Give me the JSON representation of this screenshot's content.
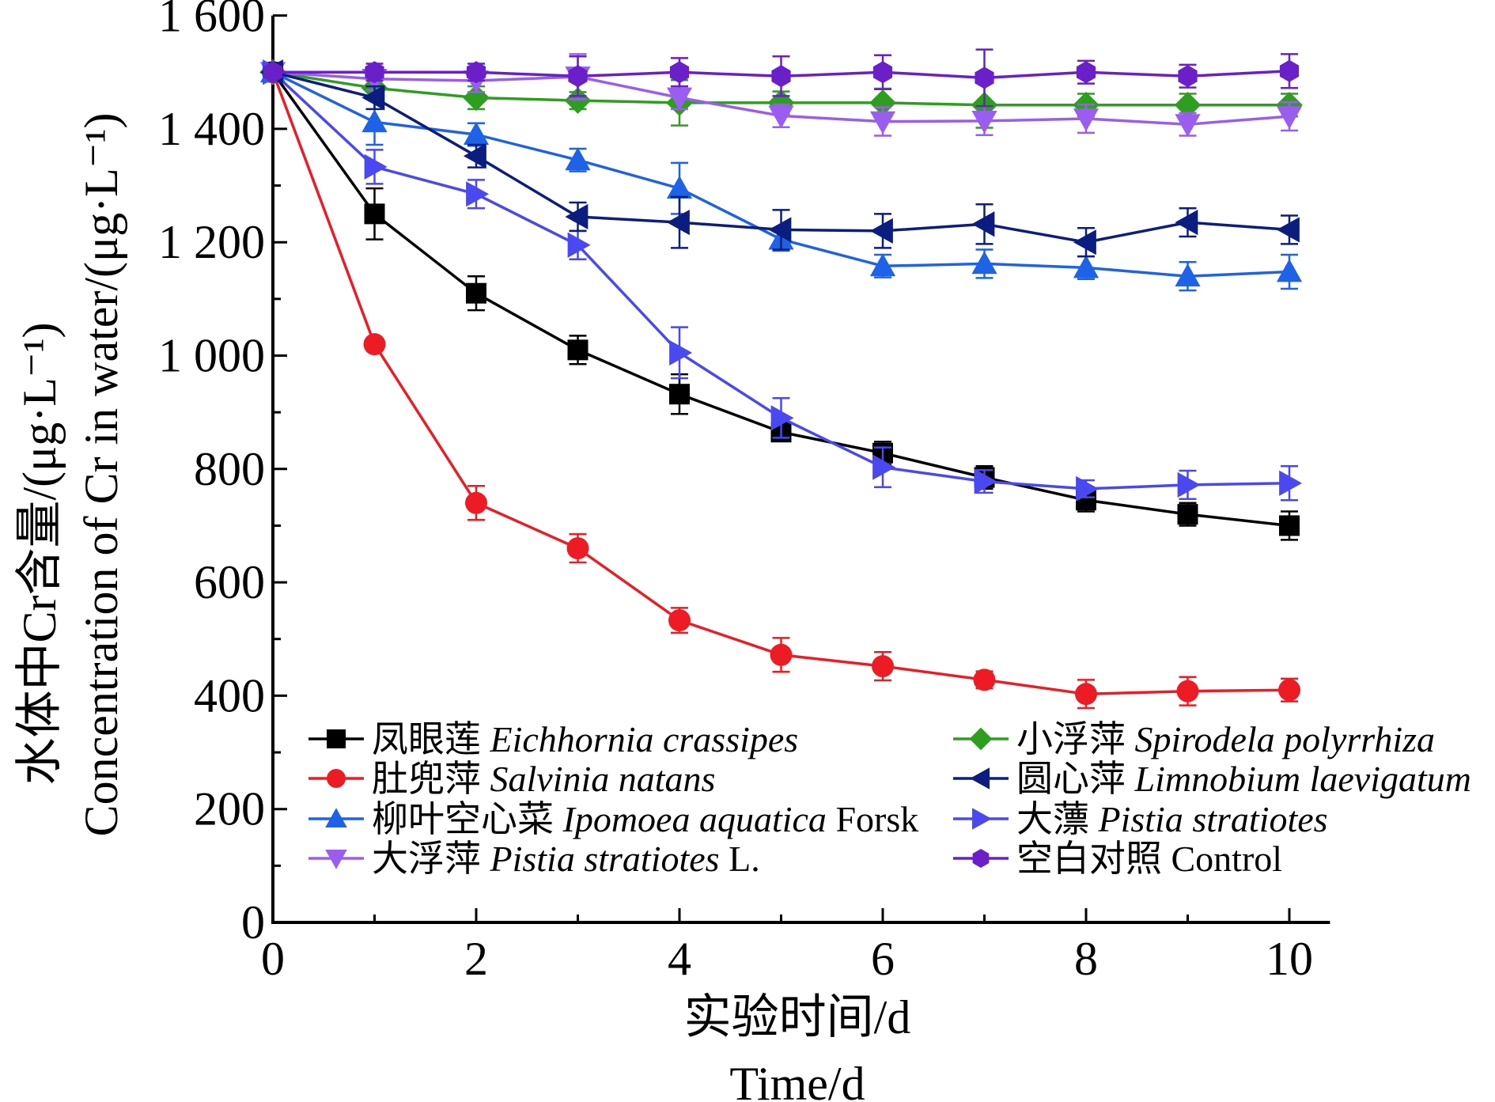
{
  "chart_data": {
    "type": "line",
    "xlabel": [
      "实验时间/d",
      "Time/d"
    ],
    "ylabel": [
      "水体中Cr含量/(μg·L⁻¹)",
      "Concentration of Cr in water/(μg·L⁻¹)"
    ],
    "xlim": [
      0,
      10.4
    ],
    "ylim": [
      0,
      1600
    ],
    "xticks": [
      0,
      2,
      4,
      6,
      8,
      10
    ],
    "xtick_labels": [
      "0",
      "2",
      "4",
      "6",
      "8",
      "10"
    ],
    "yticks": [
      0,
      200,
      400,
      600,
      800,
      1000,
      1200,
      1400,
      1600
    ],
    "ytick_labels": [
      "0",
      "200",
      "400",
      "600",
      "800",
      "1 000",
      "1 200",
      "1 400",
      "1 600"
    ],
    "grid": false,
    "legend_position": "bottom",
    "x": [
      0,
      1,
      2,
      3,
      4,
      5,
      6,
      7,
      8,
      9,
      10
    ],
    "series": [
      {
        "zh": "凤眼莲",
        "latin": "Eichhornia crassipes",
        "suffix": "",
        "color": "#000000",
        "marker": "square",
        "values": [
          1500,
          1250,
          1110,
          1010,
          932,
          865,
          828,
          785,
          745,
          720,
          700
        ],
        "errors": [
          0,
          45,
          30,
          25,
          35,
          15,
          20,
          20,
          20,
          20,
          25
        ]
      },
      {
        "zh": "肚兜萍",
        "latin": "Salvinia natans",
        "suffix": "",
        "color": "#ed1c24",
        "marker": "circle",
        "values": [
          1500,
          1020,
          740,
          660,
          533,
          472,
          452,
          428,
          403,
          408,
          410
        ],
        "errors": [
          0,
          0,
          30,
          25,
          22,
          30,
          25,
          15,
          25,
          25,
          20
        ]
      },
      {
        "zh": "柳叶空心菜",
        "latin": "Ipomoea aquatica",
        "suffix": " Forsk",
        "color": "#1e62e8",
        "marker": "triangle-up",
        "values": [
          1500,
          1412,
          1390,
          1345,
          1295,
          1205,
          1158,
          1162,
          1155,
          1140,
          1148
        ],
        "errors": [
          0,
          40,
          20,
          20,
          45,
          20,
          20,
          25,
          20,
          25,
          30
        ]
      },
      {
        "zh": "大浮萍",
        "latin": "Pistia stratiotes",
        "suffix": " L.",
        "color": "#9b5cf0",
        "marker": "triangle-down",
        "values": [
          1500,
          1488,
          1485,
          1492,
          1455,
          1423,
          1413,
          1414,
          1418,
          1408,
          1422
        ],
        "errors": [
          0,
          20,
          20,
          40,
          20,
          20,
          25,
          25,
          25,
          20,
          25
        ]
      },
      {
        "zh": "小浮萍",
        "latin": "Spirodela polyrrhiza",
        "suffix": "",
        "color": "#2e9e1f",
        "marker": "diamond",
        "values": [
          1500,
          1472,
          1455,
          1450,
          1446,
          1446,
          1446,
          1442,
          1442,
          1442,
          1442
        ],
        "errors": [
          0,
          15,
          20,
          15,
          40,
          20,
          25,
          40,
          20,
          20,
          20
        ]
      },
      {
        "zh": "圆心萍",
        "latin": "Limnobium laevigatum",
        "suffix": "",
        "color": "#0b1e80",
        "marker": "triangle-left",
        "values": [
          1500,
          1455,
          1352,
          1245,
          1235,
          1222,
          1220,
          1232,
          1200,
          1235,
          1222
        ],
        "errors": [
          0,
          20,
          20,
          25,
          45,
          35,
          30,
          35,
          25,
          25,
          25
        ]
      },
      {
        "zh": "大薸",
        "latin": "Pistia stratiotes",
        "suffix": "",
        "color": "#4a48f0",
        "marker": "triangle-right",
        "values": [
          1500,
          1333,
          1285,
          1195,
          1005,
          890,
          803,
          778,
          765,
          772,
          775
        ],
        "errors": [
          0,
          30,
          25,
          25,
          45,
          35,
          35,
          20,
          15,
          25,
          30
        ]
      },
      {
        "zh": "空白对照",
        "latin": "",
        "suffix": "Control",
        "color": "#6a1fc9",
        "marker": "hexagon",
        "values": [
          1500,
          1500,
          1500,
          1493,
          1500,
          1493,
          1500,
          1490,
          1500,
          1493,
          1502
        ],
        "errors": [
          0,
          15,
          15,
          35,
          25,
          35,
          30,
          50,
          20,
          20,
          30
        ]
      }
    ]
  }
}
